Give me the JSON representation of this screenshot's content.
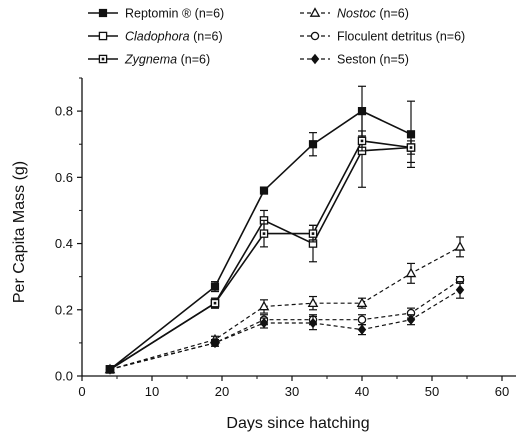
{
  "chart_data": {
    "type": "line",
    "title": "",
    "xlabel": "Days since hatching",
    "ylabel": "Per Capita Mass (g)",
    "xlim": [
      0,
      62
    ],
    "ylim": [
      0,
      0.9
    ],
    "xticks": [
      "0",
      "10",
      "20",
      "30",
      "40",
      "50",
      "60"
    ],
    "yticks": [
      "0.0",
      "0.2",
      "0.4",
      "0.6",
      "0.8"
    ],
    "grid": false,
    "legend_position": "top",
    "colors": {
      "ink": "#111111",
      "background": "#ffffff"
    },
    "series": [
      {
        "name": "Reptomin ®",
        "n_label": "(n=6)",
        "name_italic": false,
        "line": "solid",
        "marker": "square-filled",
        "x": [
          4,
          19,
          26,
          33,
          40,
          47
        ],
        "y": [
          0.02,
          0.27,
          0.56,
          0.7,
          0.8,
          0.73
        ],
        "err": [
          0.005,
          0.015,
          0.01,
          0.035,
          0.075,
          0.1
        ]
      },
      {
        "name": "Cladophora",
        "n_label": "(n=6)",
        "name_italic": true,
        "line": "solid",
        "marker": "square-open",
        "x": [
          4,
          19,
          26,
          33,
          40,
          47
        ],
        "y": [
          0.02,
          0.22,
          0.47,
          0.4,
          0.68,
          0.69
        ],
        "err": [
          0.005,
          0.015,
          0.03,
          0.055,
          0.11,
          0.045
        ]
      },
      {
        "name": "Zygnema",
        "n_label": "(n=6)",
        "name_italic": true,
        "line": "solid",
        "marker": "square-dotted",
        "x": [
          4,
          19,
          26,
          33,
          40,
          47
        ],
        "y": [
          0.02,
          0.22,
          0.43,
          0.43,
          0.71,
          0.69
        ],
        "err": [
          0.005,
          0.015,
          0.04,
          0.025,
          0.03,
          0.02
        ]
      },
      {
        "name": "Nostoc",
        "n_label": "(n=6)",
        "name_italic": true,
        "line": "dashed",
        "marker": "triangle",
        "x": [
          4,
          19,
          26,
          33,
          40,
          47,
          54
        ],
        "y": [
          0.02,
          0.11,
          0.21,
          0.22,
          0.22,
          0.31,
          0.39
        ],
        "err": [
          0.005,
          0.01,
          0.02,
          0.02,
          0.015,
          0.03,
          0.03
        ]
      },
      {
        "name": "Floculent detritus",
        "n_label": "(n=6)",
        "name_italic": false,
        "line": "dashed",
        "marker": "circle-open",
        "x": [
          4,
          19,
          26,
          33,
          40,
          47,
          54
        ],
        "y": [
          0.02,
          0.1,
          0.17,
          0.17,
          0.17,
          0.19,
          0.29
        ],
        "err": [
          0.005,
          0.01,
          0.015,
          0.015,
          0.015,
          0.015,
          0.01
        ]
      },
      {
        "name": "Seston",
        "n_label": "(n=5)",
        "name_italic": false,
        "line": "dashed",
        "marker": "diamond",
        "x": [
          4,
          19,
          26,
          33,
          40,
          47,
          54
        ],
        "y": [
          0.02,
          0.1,
          0.16,
          0.16,
          0.14,
          0.17,
          0.26
        ],
        "err": [
          0.005,
          0.01,
          0.015,
          0.02,
          0.015,
          0.015,
          0.025
        ]
      }
    ]
  }
}
